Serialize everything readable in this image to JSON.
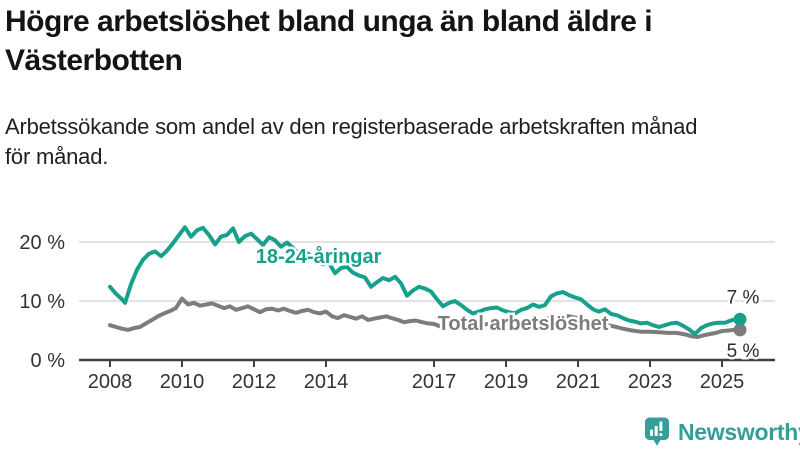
{
  "header": {
    "title_line1": "Högre arbetslöshet bland unga än bland äldre i",
    "title_line2": "Västerbotten",
    "subtitle_line1": "Arbetssökande som andel av den registerbaserade arbetskraften månad",
    "subtitle_line2": "för månad."
  },
  "branding": {
    "logo_text": "Newsworthy",
    "logo_icon": "bar-chart-speech-bubble-icon",
    "brand_color": "#359e98"
  },
  "chart_data": {
    "type": "line",
    "title": "Högre arbetslöshet bland unga än bland äldre i Västerbotten",
    "subtitle": "Arbetssökande som andel av den registerbaserade arbetskraften månad för månad.",
    "unit": "%",
    "grid": true,
    "legend_position": "inline-labels",
    "x_range": [
      2008,
      2025.6
    ],
    "y_axis": {
      "range": [
        0,
        25
      ],
      "ticks": [
        {
          "value": 0,
          "label": "0 %"
        },
        {
          "value": 10,
          "label": "10 %"
        },
        {
          "value": 20,
          "label": "20 %"
        }
      ]
    },
    "x_axis": {
      "ticks": [
        {
          "year": 2008,
          "label": "2008"
        },
        {
          "year": 2010,
          "label": "2010"
        },
        {
          "year": 2012,
          "label": "2012"
        },
        {
          "year": 2014,
          "label": "2014"
        },
        {
          "year": 2017,
          "label": "2017"
        },
        {
          "year": 2019,
          "label": "2019"
        },
        {
          "year": 2021,
          "label": "2021"
        },
        {
          "year": 2023,
          "label": "2023"
        },
        {
          "year": 2025,
          "label": "2025"
        }
      ]
    },
    "colors": {
      "grid": "#dadada",
      "axis": "#3d3d3d",
      "axis_text": "#333333",
      "end_label_text": "#2b2b2b"
    },
    "series": [
      {
        "id": "youth",
        "name": "18-24-åringar",
        "color": "#17a18c",
        "end_label": "7 %",
        "end_value": 6.9,
        "end_label_dy": -16,
        "label_pos": [
          2012.05,
          16.4
        ],
        "points": [
          [
            2008.0,
            12.4
          ],
          [
            2008.17,
            11.2
          ],
          [
            2008.33,
            10.3
          ],
          [
            2008.42,
            9.7
          ],
          [
            2008.58,
            12.8
          ],
          [
            2008.75,
            15.3
          ],
          [
            2008.92,
            17.0
          ],
          [
            2009.08,
            18.0
          ],
          [
            2009.25,
            18.4
          ],
          [
            2009.42,
            17.6
          ],
          [
            2009.58,
            18.5
          ],
          [
            2009.75,
            19.8
          ],
          [
            2009.92,
            21.2
          ],
          [
            2010.08,
            22.5
          ],
          [
            2010.25,
            20.9
          ],
          [
            2010.42,
            22.0
          ],
          [
            2010.58,
            22.4
          ],
          [
            2010.75,
            21.2
          ],
          [
            2010.92,
            19.6
          ],
          [
            2011.08,
            20.9
          ],
          [
            2011.25,
            21.2
          ],
          [
            2011.42,
            22.3
          ],
          [
            2011.58,
            20.0
          ],
          [
            2011.75,
            21.0
          ],
          [
            2011.92,
            21.4
          ],
          [
            2012.08,
            20.5
          ],
          [
            2012.25,
            19.5
          ],
          [
            2012.42,
            20.8
          ],
          [
            2012.58,
            20.3
          ],
          [
            2012.75,
            19.2
          ],
          [
            2012.92,
            19.9
          ],
          [
            2013.08,
            19.0
          ],
          [
            2013.25,
            17.9
          ],
          [
            2013.42,
            18.4
          ],
          [
            2013.58,
            17.6
          ],
          [
            2013.75,
            16.9
          ],
          [
            2013.92,
            16.2
          ],
          [
            2014.08,
            16.5
          ],
          [
            2014.25,
            14.7
          ],
          [
            2014.42,
            15.6
          ],
          [
            2014.58,
            15.8
          ],
          [
            2014.75,
            14.8
          ],
          [
            2014.92,
            14.3
          ],
          [
            2015.08,
            14.0
          ],
          [
            2015.25,
            12.4
          ],
          [
            2015.42,
            13.2
          ],
          [
            2015.58,
            13.9
          ],
          [
            2015.75,
            13.5
          ],
          [
            2015.92,
            14.1
          ],
          [
            2016.08,
            13.0
          ],
          [
            2016.25,
            10.9
          ],
          [
            2016.42,
            11.8
          ],
          [
            2016.58,
            12.4
          ],
          [
            2016.75,
            12.1
          ],
          [
            2016.92,
            11.6
          ],
          [
            2017.08,
            10.3
          ],
          [
            2017.25,
            9.1
          ],
          [
            2017.42,
            9.7
          ],
          [
            2017.58,
            10.0
          ],
          [
            2017.75,
            9.3
          ],
          [
            2017.92,
            8.5
          ],
          [
            2018.08,
            7.9
          ],
          [
            2018.25,
            8.2
          ],
          [
            2018.42,
            8.6
          ],
          [
            2018.58,
            8.8
          ],
          [
            2018.75,
            8.9
          ],
          [
            2018.92,
            8.4
          ],
          [
            2019.08,
            8.1
          ],
          [
            2019.25,
            7.9
          ],
          [
            2019.42,
            8.5
          ],
          [
            2019.58,
            8.8
          ],
          [
            2019.75,
            9.4
          ],
          [
            2019.92,
            9.0
          ],
          [
            2020.08,
            9.3
          ],
          [
            2020.25,
            10.8
          ],
          [
            2020.42,
            11.3
          ],
          [
            2020.58,
            11.5
          ],
          [
            2020.75,
            11.0
          ],
          [
            2020.92,
            10.6
          ],
          [
            2021.08,
            10.3
          ],
          [
            2021.25,
            9.4
          ],
          [
            2021.42,
            8.6
          ],
          [
            2021.58,
            8.2
          ],
          [
            2021.75,
            8.6
          ],
          [
            2021.92,
            7.8
          ],
          [
            2022.08,
            7.6
          ],
          [
            2022.25,
            7.1
          ],
          [
            2022.42,
            6.7
          ],
          [
            2022.58,
            6.5
          ],
          [
            2022.75,
            6.2
          ],
          [
            2022.92,
            6.3
          ],
          [
            2023.08,
            5.9
          ],
          [
            2023.25,
            5.6
          ],
          [
            2023.42,
            5.9
          ],
          [
            2023.58,
            6.2
          ],
          [
            2023.75,
            6.3
          ],
          [
            2023.92,
            5.8
          ],
          [
            2024.08,
            5.2
          ],
          [
            2024.25,
            4.4
          ],
          [
            2024.42,
            5.4
          ],
          [
            2024.58,
            5.9
          ],
          [
            2024.75,
            6.2
          ],
          [
            2024.92,
            6.3
          ],
          [
            2025.08,
            6.3
          ],
          [
            2025.25,
            6.7
          ],
          [
            2025.42,
            7.0
          ],
          [
            2025.5,
            6.9
          ]
        ]
      },
      {
        "id": "total",
        "name": "Total arbetslöshet",
        "color": "#7c7c7c",
        "end_label": "5 %",
        "end_value": 5.1,
        "end_label_dy": 27,
        "label_pos": [
          2017.1,
          5.1
        ],
        "points": [
          [
            2008.0,
            5.9
          ],
          [
            2008.17,
            5.6
          ],
          [
            2008.33,
            5.3
          ],
          [
            2008.5,
            5.1
          ],
          [
            2008.67,
            5.4
          ],
          [
            2008.83,
            5.6
          ],
          [
            2009.0,
            6.2
          ],
          [
            2009.17,
            6.8
          ],
          [
            2009.33,
            7.4
          ],
          [
            2009.5,
            7.9
          ],
          [
            2009.67,
            8.3
          ],
          [
            2009.83,
            8.8
          ],
          [
            2010.0,
            10.4
          ],
          [
            2010.17,
            9.4
          ],
          [
            2010.33,
            9.7
          ],
          [
            2010.5,
            9.2
          ],
          [
            2010.67,
            9.4
          ],
          [
            2010.83,
            9.6
          ],
          [
            2011.0,
            9.2
          ],
          [
            2011.17,
            8.8
          ],
          [
            2011.33,
            9.1
          ],
          [
            2011.5,
            8.5
          ],
          [
            2011.67,
            8.8
          ],
          [
            2011.83,
            9.1
          ],
          [
            2012.0,
            8.6
          ],
          [
            2012.17,
            8.1
          ],
          [
            2012.33,
            8.6
          ],
          [
            2012.5,
            8.7
          ],
          [
            2012.67,
            8.4
          ],
          [
            2012.83,
            8.7
          ],
          [
            2013.0,
            8.3
          ],
          [
            2013.17,
            8.0
          ],
          [
            2013.33,
            8.3
          ],
          [
            2013.5,
            8.5
          ],
          [
            2013.67,
            8.1
          ],
          [
            2013.83,
            7.9
          ],
          [
            2014.0,
            8.2
          ],
          [
            2014.17,
            7.4
          ],
          [
            2014.33,
            7.1
          ],
          [
            2014.5,
            7.6
          ],
          [
            2014.67,
            7.3
          ],
          [
            2014.83,
            7.0
          ],
          [
            2015.0,
            7.4
          ],
          [
            2015.17,
            6.8
          ],
          [
            2015.33,
            7.0
          ],
          [
            2015.5,
            7.2
          ],
          [
            2015.67,
            7.4
          ],
          [
            2015.83,
            7.1
          ],
          [
            2016.0,
            6.8
          ],
          [
            2016.17,
            6.4
          ],
          [
            2016.33,
            6.6
          ],
          [
            2016.5,
            6.7
          ],
          [
            2016.67,
            6.4
          ],
          [
            2016.83,
            6.2
          ],
          [
            2017.0,
            6.1
          ],
          [
            2017.17,
            5.7
          ],
          [
            2017.33,
            5.9
          ],
          [
            2017.5,
            6.0
          ],
          [
            2017.67,
            6.2
          ],
          [
            2017.83,
            6.0
          ],
          [
            2018.0,
            5.8
          ],
          [
            2018.25,
            5.9
          ],
          [
            2018.5,
            6.1
          ],
          [
            2018.75,
            6.2
          ],
          [
            2019.0,
            6.0
          ],
          [
            2019.25,
            6.1
          ],
          [
            2019.5,
            6.3
          ],
          [
            2019.75,
            6.4
          ],
          [
            2020.0,
            6.5
          ],
          [
            2020.25,
            7.3
          ],
          [
            2020.5,
            7.6
          ],
          [
            2020.75,
            7.4
          ],
          [
            2021.0,
            7.1
          ],
          [
            2021.25,
            6.8
          ],
          [
            2021.5,
            6.4
          ],
          [
            2021.75,
            6.0
          ],
          [
            2022.0,
            5.7
          ],
          [
            2022.25,
            5.3
          ],
          [
            2022.5,
            5.0
          ],
          [
            2022.75,
            4.8
          ],
          [
            2023.0,
            4.8
          ],
          [
            2023.25,
            4.7
          ],
          [
            2023.5,
            4.6
          ],
          [
            2023.75,
            4.6
          ],
          [
            2024.0,
            4.3
          ],
          [
            2024.17,
            4.0
          ],
          [
            2024.33,
            3.9
          ],
          [
            2024.5,
            4.2
          ],
          [
            2024.67,
            4.4
          ],
          [
            2024.83,
            4.6
          ],
          [
            2025.0,
            4.9
          ],
          [
            2025.17,
            5.0
          ],
          [
            2025.33,
            5.1
          ],
          [
            2025.5,
            5.1
          ]
        ]
      }
    ]
  }
}
